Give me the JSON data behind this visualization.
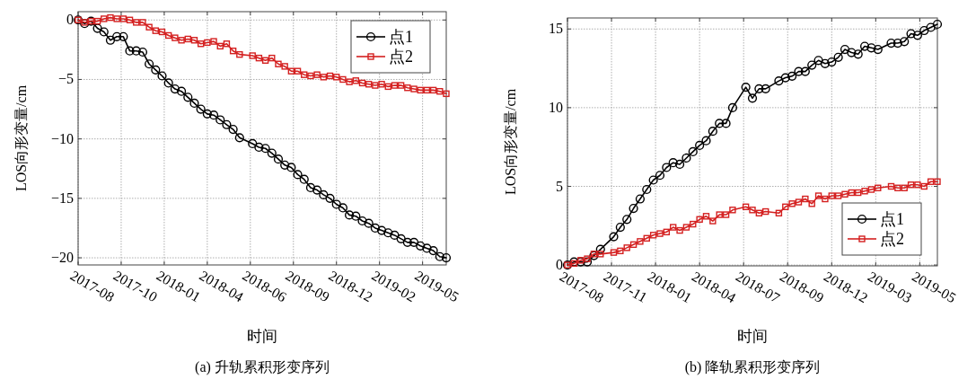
{
  "chart_data": [
    {
      "type": "line",
      "title": "(a) 升轨累积形变序列",
      "xlabel": "时间",
      "ylabel": "LOS向形变量/cm",
      "grid": true,
      "legend": "top right",
      "x": [
        "2017-08-10",
        "2017-08-22",
        "2017-09-03",
        "2017-09-15",
        "2017-09-27",
        "2017-10-09",
        "2017-10-21",
        "2017-11-02",
        "2017-11-14",
        "2017-11-26",
        "2017-12-08",
        "2017-12-20",
        "2018-01-01",
        "2018-01-13",
        "2018-01-25",
        "2018-02-06",
        "2018-02-18",
        "2018-03-02",
        "2018-03-14",
        "2018-03-26",
        "2018-04-07",
        "2018-04-19",
        "2018-05-01",
        "2018-05-13",
        "2018-05-25",
        "2018-06-06",
        "2018-06-30",
        "2018-07-12",
        "2018-07-24",
        "2018-08-05",
        "2018-08-17",
        "2018-08-29",
        "2018-09-10",
        "2018-09-22",
        "2018-10-04",
        "2018-10-16",
        "2018-10-28",
        "2018-11-09",
        "2018-11-21",
        "2018-12-03",
        "2018-12-15",
        "2018-12-27",
        "2019-01-08",
        "2019-01-20",
        "2019-02-01",
        "2019-02-13",
        "2019-02-25",
        "2019-03-09",
        "2019-03-21",
        "2019-04-02",
        "2019-04-14",
        "2019-04-26",
        "2019-05-08",
        "2019-05-20",
        "2019-06-01",
        "2019-06-13",
        "2019-06-25"
      ],
      "xlim": [
        "2017-08-10",
        "2019-06-25"
      ],
      "xticks": [
        {
          "value": "2017-08-10",
          "label": "2017-08"
        },
        {
          "value": "2017-10-29",
          "label": "2017-10"
        },
        {
          "value": "2018-01-17",
          "label": "2018-01"
        },
        {
          "value": "2018-04-07",
          "label": "2018-04"
        },
        {
          "value": "2018-06-26",
          "label": "2018-06"
        },
        {
          "value": "2018-09-14",
          "label": "2018-09"
        },
        {
          "value": "2018-12-03",
          "label": "2018-12"
        },
        {
          "value": "2019-02-21",
          "label": "2019-02"
        },
        {
          "value": "2019-05-12",
          "label": "2019-05"
        }
      ],
      "ylim": [
        -20.6,
        0.7
      ],
      "yticks": [
        {
          "value": -20,
          "label": "−20"
        },
        {
          "value": -15,
          "label": "−15"
        },
        {
          "value": -10,
          "label": "−10"
        },
        {
          "value": -5,
          "label": "−5"
        },
        0
      ],
      "series": [
        {
          "name": "点1",
          "color": "#000000",
          "marker": "circle",
          "values": [
            0,
            -0.3,
            -0.1,
            -0.7,
            -1.0,
            -1.7,
            -1.4,
            -1.4,
            -2.6,
            -2.6,
            -2.7,
            -3.7,
            -4.2,
            -4.7,
            -5.3,
            -5.8,
            -6.0,
            -6.5,
            -7.0,
            -7.5,
            -7.9,
            -8.0,
            -8.4,
            -8.8,
            -9.2,
            -9.9,
            -10.4,
            -10.7,
            -10.8,
            -11.2,
            -11.7,
            -12.2,
            -12.4,
            -13.0,
            -13.4,
            -14.1,
            -14.3,
            -14.7,
            -15.0,
            -15.5,
            -15.8,
            -16.4,
            -16.5,
            -16.9,
            -17.1,
            -17.5,
            -17.7,
            -17.9,
            -18.1,
            -18.4,
            -18.7,
            -18.7,
            -19.0,
            -19.2,
            -19.4,
            -19.9,
            -20.0
          ]
        },
        {
          "name": "点2",
          "color": "#d42020",
          "marker": "square",
          "values": [
            0,
            -0.2,
            -0.1,
            -0.1,
            0.1,
            0.2,
            0.1,
            0.1,
            0,
            -0.2,
            -0.2,
            -0.6,
            -0.9,
            -1.0,
            -1.3,
            -1.5,
            -1.7,
            -1.6,
            -1.7,
            -2.0,
            -1.9,
            -1.8,
            -2.2,
            -2.0,
            -2.6,
            -2.9,
            -3.0,
            -3.2,
            -3.4,
            -3.2,
            -3.7,
            -3.9,
            -4.3,
            -4.3,
            -4.6,
            -4.7,
            -4.6,
            -4.8,
            -4.7,
            -4.8,
            -5.0,
            -5.2,
            -5.1,
            -5.3,
            -5.4,
            -5.5,
            -5.4,
            -5.6,
            -5.5,
            -5.5,
            -5.7,
            -5.8,
            -5.9,
            -5.9,
            -5.9,
            -6.0,
            -6.2
          ]
        }
      ]
    },
    {
      "type": "line",
      "title": "(b) 降轨累积形变序列",
      "xlabel": "时间",
      "ylabel": "LOS向形变量/cm",
      "grid": true,
      "legend": "bottom right",
      "x": [
        "2017-08-20",
        "2017-09-01",
        "2017-09-13",
        "2017-09-25",
        "2017-10-07",
        "2017-10-19",
        "2017-11-12",
        "2017-11-24",
        "2017-12-06",
        "2017-12-18",
        "2017-12-30",
        "2018-01-11",
        "2018-01-23",
        "2018-02-04",
        "2018-02-16",
        "2018-02-28",
        "2018-03-12",
        "2018-03-24",
        "2018-04-05",
        "2018-04-17",
        "2018-04-29",
        "2018-05-11",
        "2018-05-23",
        "2018-06-04",
        "2018-06-16",
        "2018-07-10",
        "2018-07-22",
        "2018-08-03",
        "2018-08-15",
        "2018-09-08",
        "2018-09-20",
        "2018-10-02",
        "2018-10-14",
        "2018-10-26",
        "2018-11-07",
        "2018-11-19",
        "2018-12-01",
        "2018-12-13",
        "2018-12-25",
        "2019-01-06",
        "2019-01-18",
        "2019-01-30",
        "2019-02-11",
        "2019-02-23",
        "2019-03-07",
        "2019-03-31",
        "2019-04-12",
        "2019-04-24",
        "2019-05-06",
        "2019-05-18",
        "2019-05-30",
        "2019-06-11",
        "2019-06-23"
      ],
      "xlim": [
        "2017-08-20",
        "2019-06-23"
      ],
      "xticks": [
        {
          "value": "2017-08-20",
          "label": "2017-08"
        },
        {
          "value": "2017-11-08",
          "label": "2017-11"
        },
        {
          "value": "2018-01-27",
          "label": "2018-01"
        },
        {
          "value": "2018-04-17",
          "label": "2018-04"
        },
        {
          "value": "2018-07-06",
          "label": "2018-07"
        },
        {
          "value": "2018-09-24",
          "label": "2018-09"
        },
        {
          "value": "2018-12-13",
          "label": "2018-12"
        },
        {
          "value": "2019-03-03",
          "label": "2019-03"
        },
        {
          "value": "2019-05-22",
          "label": "2019-05"
        }
      ],
      "ylim": [
        -0.05,
        15.7
      ],
      "yticks": [
        0,
        5,
        10,
        15
      ],
      "series": [
        {
          "name": "点1",
          "color": "#000000",
          "marker": "circle",
          "values": [
            0,
            0.2,
            0.2,
            0.2,
            0.6,
            1.0,
            1.8,
            2.4,
            2.9,
            3.6,
            4.2,
            4.8,
            5.4,
            5.7,
            6.2,
            6.5,
            6.4,
            6.8,
            7.2,
            7.6,
            7.9,
            8.5,
            9.0,
            9.0,
            10.0,
            11.3,
            10.6,
            11.2,
            11.2,
            11.7,
            11.9,
            12.0,
            12.3,
            12.3,
            12.7,
            13.0,
            12.8,
            12.9,
            13.2,
            13.7,
            13.5,
            13.4,
            13.9,
            13.8,
            13.7,
            14.1,
            14.1,
            14.2,
            14.7,
            14.6,
            14.9,
            15.1,
            15.3
          ]
        },
        {
          "name": "点2",
          "color": "#d42020",
          "marker": "square",
          "values": [
            0,
            0.1,
            0.3,
            0.4,
            0.7,
            0.7,
            0.8,
            0.9,
            1.1,
            1.3,
            1.5,
            1.7,
            1.9,
            2.0,
            2.1,
            2.4,
            2.2,
            2.4,
            2.6,
            2.9,
            3.1,
            2.8,
            3.2,
            3.2,
            3.5,
            3.7,
            3.5,
            3.3,
            3.4,
            3.3,
            3.7,
            3.9,
            4.0,
            4.2,
            3.9,
            4.4,
            4.2,
            4.4,
            4.4,
            4.5,
            4.6,
            4.6,
            4.7,
            4.8,
            4.9,
            5.0,
            4.9,
            4.9,
            5.1,
            5.1,
            5.0,
            5.3,
            5.3
          ]
        }
      ]
    }
  ]
}
